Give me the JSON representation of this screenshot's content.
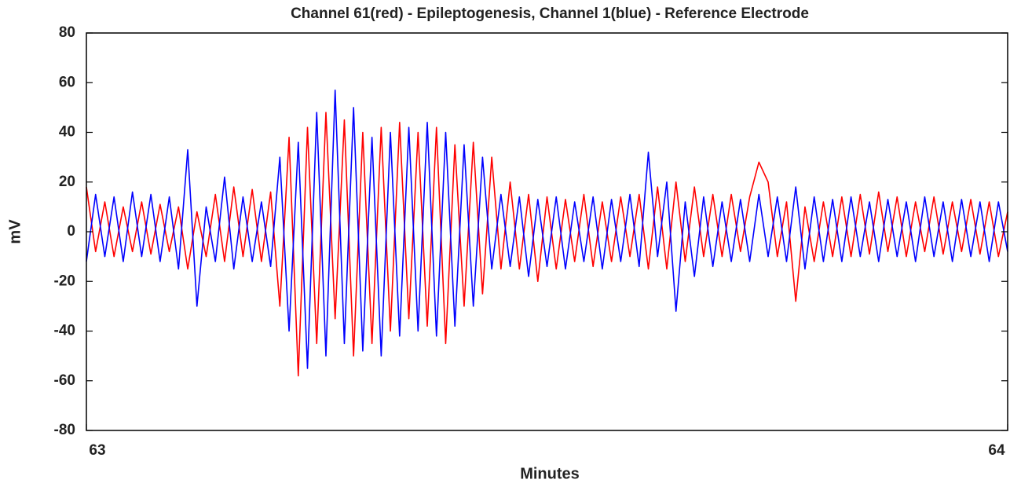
{
  "chart_data": {
    "type": "line",
    "title": "Channel 61(red) - Epileptogenesis, Channel 1(blue) - Reference Electrode",
    "x_label": "Minutes",
    "y_label": "mV",
    "xlim": [
      63,
      64
    ],
    "xticks": [
      63,
      64
    ],
    "ylim": [
      -80,
      80
    ],
    "yticks": [
      -80,
      -60,
      -40,
      -20,
      0,
      20,
      40,
      60,
      80
    ],
    "x": [
      63,
      63.01,
      63.02,
      63.03,
      63.04,
      63.05,
      63.06,
      63.07,
      63.08,
      63.09,
      63.1,
      63.11,
      63.12,
      63.13,
      63.14,
      63.15,
      63.16,
      63.17,
      63.18,
      63.19,
      63.2,
      63.21,
      63.22,
      63.23,
      63.24,
      63.25,
      63.26,
      63.27,
      63.28,
      63.29,
      63.3,
      63.31,
      63.32,
      63.33,
      63.34,
      63.35,
      63.36,
      63.37,
      63.38,
      63.39,
      63.4,
      63.41,
      63.42,
      63.43,
      63.44,
      63.45,
      63.46,
      63.47,
      63.48,
      63.49,
      63.5,
      63.51,
      63.52,
      63.53,
      63.54,
      63.55,
      63.56,
      63.57,
      63.58,
      63.59,
      63.6,
      63.61,
      63.62,
      63.63,
      63.64,
      63.65,
      63.66,
      63.67,
      63.68,
      63.69,
      63.7,
      63.71,
      63.72,
      63.73,
      63.74,
      63.75,
      63.76,
      63.77,
      63.78,
      63.79,
      63.8,
      63.81,
      63.82,
      63.83,
      63.84,
      63.85,
      63.86,
      63.87,
      63.88,
      63.89,
      63.9,
      63.91,
      63.92,
      63.93,
      63.94,
      63.95,
      63.96,
      63.97,
      63.98,
      63.99,
      64
    ],
    "series": [
      {
        "color": "#ff0000",
        "values": [
          18,
          -8,
          12,
          -10,
          10,
          -8,
          12,
          -9,
          11,
          -8,
          10,
          -15,
          8,
          -10,
          15,
          -12,
          18,
          -10,
          17,
          -12,
          16,
          -30,
          38,
          -58,
          42,
          -45,
          48,
          -35,
          45,
          -50,
          40,
          -45,
          42,
          -40,
          44,
          -35,
          40,
          -38,
          42,
          -45,
          35,
          -30,
          36,
          -25,
          30,
          -15,
          20,
          -15,
          15,
          -20,
          14,
          -15,
          13,
          -12,
          15,
          -14,
          12,
          -12,
          14,
          -10,
          15,
          -15,
          18,
          -15,
          20,
          -12,
          18,
          -10,
          15,
          -10,
          15,
          -8,
          14,
          28,
          20,
          -10,
          12,
          -28,
          10,
          -12,
          12,
          -10,
          14,
          -10,
          15,
          -9,
          16,
          -8,
          14,
          -10,
          12,
          -8,
          14,
          -9,
          12,
          -8,
          13,
          -9,
          12,
          -10,
          8
        ]
      },
      {
        "color": "#0000ff",
        "values": [
          -12,
          15,
          -10,
          14,
          -12,
          16,
          -10,
          15,
          -12,
          14,
          -15,
          33,
          -30,
          10,
          -12,
          22,
          -15,
          14,
          -12,
          12,
          -14,
          30,
          -40,
          36,
          -55,
          48,
          -50,
          57,
          -45,
          50,
          -48,
          38,
          -50,
          40,
          -42,
          42,
          -40,
          44,
          -42,
          40,
          -38,
          35,
          -30,
          30,
          -15,
          15,
          -14,
          14,
          -18,
          13,
          -14,
          14,
          -15,
          12,
          -12,
          14,
          -15,
          13,
          -12,
          15,
          -14,
          32,
          -10,
          20,
          -32,
          12,
          -18,
          14,
          -14,
          12,
          -12,
          13,
          -12,
          15,
          -10,
          14,
          -12,
          18,
          -15,
          14,
          -12,
          13,
          -12,
          14,
          -10,
          12,
          -12,
          13,
          -10,
          12,
          -12,
          14,
          -10,
          12,
          -12,
          13,
          -10,
          12,
          -12,
          12,
          -8
        ]
      }
    ]
  }
}
